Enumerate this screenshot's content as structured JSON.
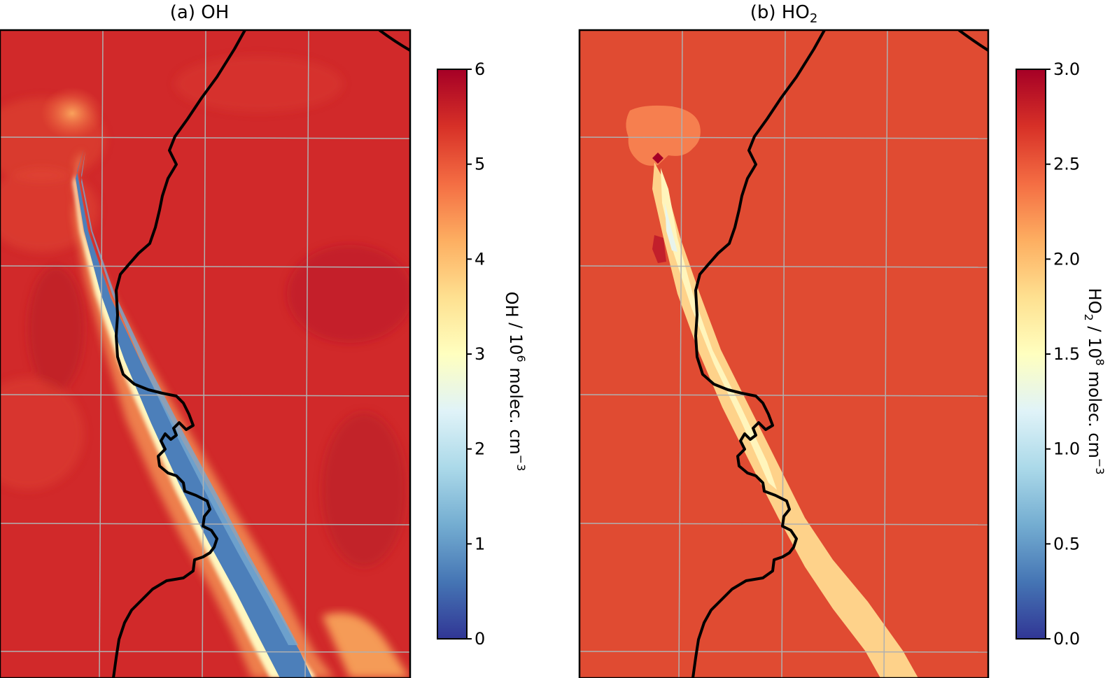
{
  "figure": {
    "panels": [
      {
        "id": "oh",
        "title_prefix": "(a) ",
        "title_species": "OH",
        "title_sub": "",
        "colorbar": {
          "species": "OH",
          "species_sub": "",
          "exp": "6",
          "unit_text": "molec. cm",
          "unit_exp": "−3",
          "ticks": [
            "0",
            "1",
            "2",
            "3",
            "4",
            "5",
            "6"
          ]
        }
      },
      {
        "id": "ho2",
        "title_prefix": "(b) ",
        "title_species": "HO",
        "title_sub": "2",
        "colorbar": {
          "species": "HO",
          "species_sub": "2",
          "exp": "8",
          "unit_text": "molec. cm",
          "unit_exp": "−3",
          "ticks": [
            "0.0",
            "0.5",
            "1.0",
            "1.5",
            "2.0",
            "2.5",
            "3.0"
          ]
        }
      }
    ],
    "colormap": "RdYlBu_r",
    "background_color": "#d73529",
    "coastline_color": "#000000",
    "gridline_color": "#b0b0b0"
  },
  "chart_data": [
    {
      "type": "heatmap",
      "title": "(a) OH",
      "colorbar_label": "OH / 10^6 molec. cm^-3",
      "colorbar_range": [
        0,
        6
      ],
      "colorbar_ticks": [
        0,
        1,
        2,
        3,
        4,
        5,
        6
      ],
      "background_level": 5.5,
      "plume_core_level": 1.0,
      "plume_edge_level": 3.0
    },
    {
      "type": "heatmap",
      "title": "(b) HO2",
      "colorbar_label": "HO2 / 10^8 molec. cm^-3",
      "colorbar_range": [
        0.0,
        3.0
      ],
      "colorbar_ticks": [
        0.0,
        0.5,
        1.0,
        1.5,
        2.0,
        2.5,
        3.0
      ],
      "background_level": 2.65,
      "plume_core_level": 1.5,
      "plume_edge_level": 2.0
    }
  ]
}
